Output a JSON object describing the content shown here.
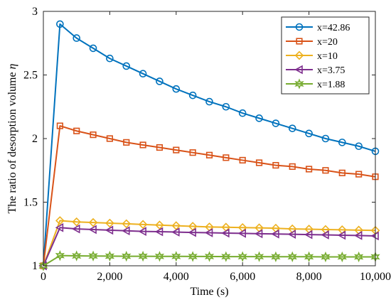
{
  "chart_data": {
    "type": "line",
    "title": "",
    "xlabel": "Time (s)",
    "ylabel": "The ratio of desorption volume η",
    "xlim": [
      0,
      10000
    ],
    "ylim": [
      1,
      3
    ],
    "x_ticks": [
      0,
      2000,
      4000,
      6000,
      8000,
      10000
    ],
    "x_tick_labels": [
      "0",
      "2,000",
      "4,000",
      "6,000",
      "8,000",
      "10,000"
    ],
    "y_ticks": [
      1,
      1.5,
      2,
      2.5,
      3
    ],
    "y_tick_labels": [
      "1",
      "1.5",
      "2",
      "2.5",
      "3"
    ],
    "grid": false,
    "legend_position": "top-right",
    "x": [
      0,
      500,
      1000,
      1500,
      2000,
      2500,
      3000,
      3500,
      4000,
      4500,
      5000,
      5500,
      6000,
      6500,
      7000,
      7500,
      8000,
      8500,
      9000,
      9500,
      10000
    ],
    "series": [
      {
        "name": "x=42.86",
        "color": "#0072BD",
        "marker": "circle",
        "values": [
          1.0,
          2.9,
          2.79,
          2.71,
          2.63,
          2.57,
          2.51,
          2.45,
          2.39,
          2.34,
          2.29,
          2.25,
          2.2,
          2.16,
          2.12,
          2.08,
          2.04,
          2.0,
          1.97,
          1.94,
          1.9
        ]
      },
      {
        "name": "x=20",
        "color": "#D95319",
        "marker": "square",
        "values": [
          1.0,
          2.1,
          2.06,
          2.03,
          2.0,
          1.97,
          1.95,
          1.93,
          1.91,
          1.89,
          1.87,
          1.85,
          1.83,
          1.81,
          1.79,
          1.78,
          1.76,
          1.75,
          1.73,
          1.72,
          1.7
        ]
      },
      {
        "name": "x=10",
        "color": "#EDB120",
        "marker": "diamond",
        "values": [
          1.0,
          1.355,
          1.345,
          1.34,
          1.335,
          1.33,
          1.325,
          1.32,
          1.315,
          1.31,
          1.305,
          1.303,
          1.3,
          1.298,
          1.295,
          1.29,
          1.288,
          1.285,
          1.283,
          1.28,
          1.278
        ]
      },
      {
        "name": "x=3.75",
        "color": "#7E2F8E",
        "marker": "triangle-left",
        "values": [
          1.0,
          1.3,
          1.29,
          1.285,
          1.28,
          1.275,
          1.27,
          1.268,
          1.265,
          1.262,
          1.26,
          1.257,
          1.255,
          1.252,
          1.25,
          1.248,
          1.245,
          1.243,
          1.24,
          1.238,
          1.235
        ]
      },
      {
        "name": "x=1.88",
        "color": "#77AC30",
        "marker": "hexagram",
        "values": [
          1.0,
          1.08,
          1.078,
          1.077,
          1.076,
          1.075,
          1.075,
          1.074,
          1.074,
          1.073,
          1.073,
          1.072,
          1.072,
          1.072,
          1.071,
          1.071,
          1.071,
          1.07,
          1.07,
          1.07,
          1.07
        ]
      }
    ]
  }
}
